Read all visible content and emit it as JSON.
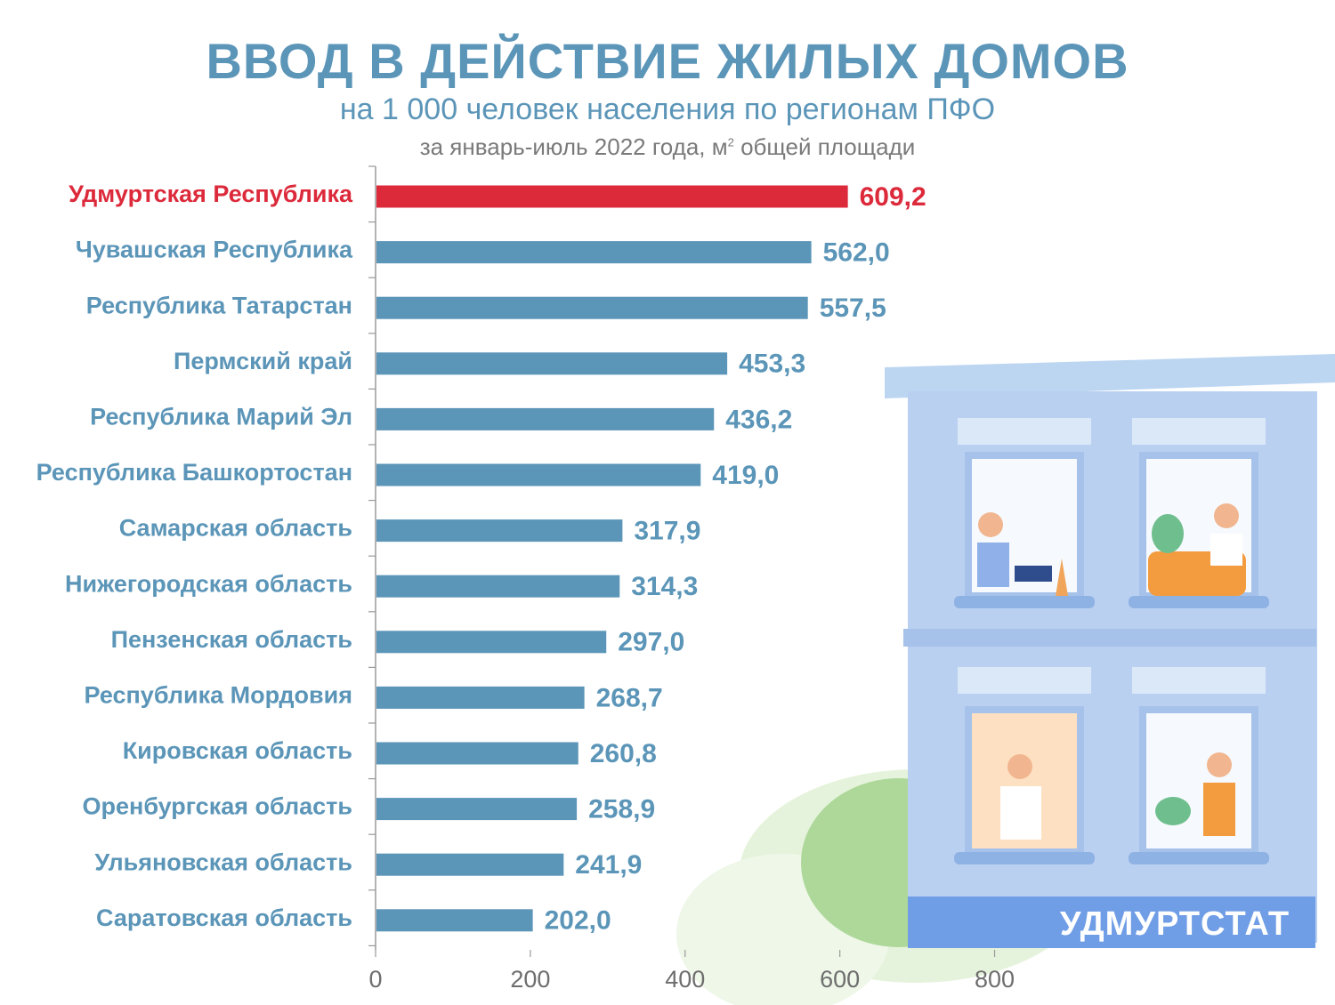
{
  "header": {
    "title": "ВВОД В ДЕЙСТВИЕ ЖИЛЫХ ДОМОВ",
    "subtitle": "на 1 000 человек населения по регионам ПФО",
    "unit_prefix": "за январь-июль 2022 года, м",
    "unit_sup": "2",
    "unit_suffix": " общей площади"
  },
  "brand": "УДМУРТСТАТ",
  "colors": {
    "highlight": "#dc2a3b",
    "bar": "#5b95b8",
    "label": "#5b95b8",
    "axis": "#9a9a9a",
    "tick": "#6e6e6e"
  },
  "chart_data": {
    "type": "bar",
    "orientation": "horizontal",
    "categories": [
      "Удмуртская Республика",
      "Чувашская Республика",
      "Республика Татарстан",
      "Пермский край",
      "Республика  Марий Эл",
      "Республика Башкортостан",
      "Самарская область",
      "Нижегородская область",
      "Пензенская область",
      "Республика Мордовия",
      "Кировская область",
      "Оренбургская область",
      "Ульяновская область",
      "Саратовская область"
    ],
    "values": [
      609.2,
      562.0,
      557.5,
      453.3,
      436.2,
      419.0,
      317.9,
      314.3,
      297.0,
      268.7,
      260.8,
      258.9,
      241.9,
      202.0
    ],
    "value_labels": [
      "609,2",
      "562,0",
      "557,5",
      "453,3",
      "436,2",
      "419,0",
      "317,9",
      "314,3",
      "297,0",
      "268,7",
      "260,8",
      "258,9",
      "241,9",
      "202,0"
    ],
    "highlight_index": 0,
    "xlim": [
      0,
      800
    ],
    "xticks": [
      0,
      200,
      400,
      600,
      800
    ],
    "grid": false
  }
}
